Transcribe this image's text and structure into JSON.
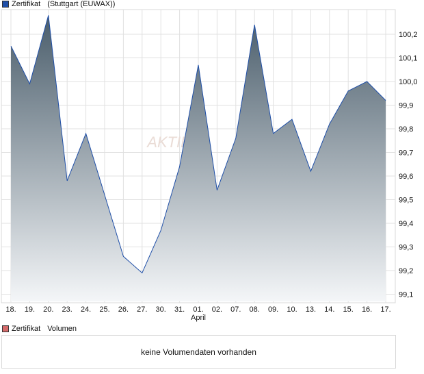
{
  "legend_price": {
    "name": "Zertifikat",
    "venue": "(Stuttgart (EUWAX))",
    "color": "#1f4fa8"
  },
  "legend_volume": {
    "name": "Zertifikat",
    "label": "Volumen",
    "color": "#d46a6a"
  },
  "volume_message": "keine Volumendaten vorhanden",
  "chart_data": {
    "type": "area",
    "title": "Zertifikat (Stuttgart (EUWAX))",
    "categories": [
      "18.",
      "19.",
      "20.",
      "23.",
      "24.",
      "25.",
      "26.",
      "27.",
      "30.",
      "31.",
      "01.",
      "02.",
      "07.",
      "08.",
      "09.",
      "10.",
      "13.",
      "14.",
      "15.",
      "16.",
      "17."
    ],
    "month_label": {
      "text": "April",
      "at": "01."
    },
    "values": [
      100.15,
      99.99,
      100.28,
      99.58,
      99.78,
      99.52,
      99.26,
      99.19,
      99.37,
      99.64,
      100.07,
      99.54,
      99.76,
      100.24,
      99.78,
      99.84,
      99.62,
      99.82,
      99.96,
      100.0,
      99.92
    ],
    "yticks": [
      "99,1",
      "99,2",
      "99,3",
      "99,4",
      "99,5",
      "99,6",
      "99,7",
      "99,8",
      "99,9",
      "100,0",
      "100,1",
      "100,2"
    ],
    "ylim": [
      99.0,
      100.3
    ],
    "grid": true,
    "line_color": "#1f4fa8",
    "fill_top": "#4a5d6b",
    "fill_bottom": "#f4f6f8"
  }
}
